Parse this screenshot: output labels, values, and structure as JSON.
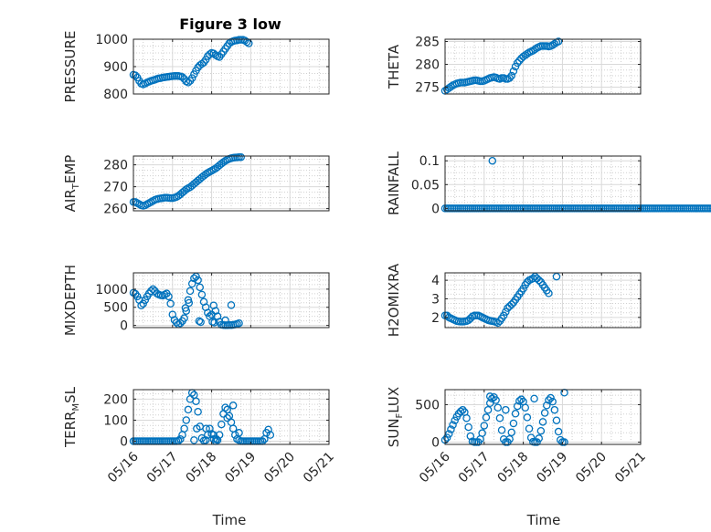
{
  "figure": {
    "title": "Figure 3 low",
    "marker_color": "#0072BD"
  },
  "x_ticks": [
    "05/16",
    "05/17",
    "05/18",
    "05/19",
    "05/20",
    "05/21"
  ],
  "chart_data": [
    {
      "type": "scatter",
      "title": "Figure 3 low",
      "ylabel_main": "PRESSURE",
      "ylabel_sub": "",
      "ylabel_tail": "",
      "xlabel": "",
      "ylim": [
        800,
        1000
      ],
      "yticks": [
        "800",
        "900",
        "1000"
      ],
      "ytick_values": [
        800,
        900,
        1000
      ],
      "x_range_days": [
        0,
        5
      ],
      "grid": true,
      "x_step": 0.05,
      "y": [
        870,
        868,
        860,
        848,
        838,
        835,
        838,
        842,
        845,
        848,
        850,
        852,
        855,
        857,
        858,
        860,
        861,
        862,
        863,
        864,
        865,
        866,
        866,
        866,
        864,
        862,
        855,
        846,
        842,
        848,
        858,
        872,
        885,
        897,
        905,
        910,
        915,
        925,
        938,
        945,
        950,
        948,
        942,
        938,
        935,
        945,
        955,
        965,
        975,
        985,
        990,
        993,
        995,
        996,
        998,
        998,
        998,
        995,
        990,
        985
      ]
    },
    {
      "type": "scatter",
      "title": "",
      "ylabel_main": "THETA",
      "ylabel_sub": "",
      "ylabel_tail": "",
      "xlabel": "",
      "ylim": [
        273.5,
        285.5
      ],
      "yticks": [
        "275",
        "280",
        "285"
      ],
      "ytick_values": [
        275,
        280,
        285
      ],
      "x_range_days": [
        0,
        5
      ],
      "grid": true,
      "x_step": 0.05,
      "y": [
        274.2,
        274.5,
        274.8,
        275.1,
        275.4,
        275.6,
        275.8,
        275.9,
        276,
        276,
        276,
        276.1,
        276.2,
        276.3,
        276.4,
        276.5,
        276.5,
        276.4,
        276.3,
        276.3,
        276.4,
        276.6,
        276.8,
        277,
        277.1,
        277.2,
        277.1,
        276.9,
        276.8,
        277,
        277,
        276.8,
        276.8,
        277,
        277.5,
        278.5,
        279.5,
        280.3,
        280.8,
        281.3,
        281.7,
        282,
        282.3,
        282.6,
        282.8,
        283,
        283.3,
        283.6,
        283.8,
        284,
        284,
        284,
        284,
        283.9,
        284,
        284.2,
        284.5,
        284.8,
        285
      ]
    },
    {
      "type": "scatter",
      "title": "",
      "ylabel_main": "AIR",
      "ylabel_sub": "T",
      "ylabel_tail": "EMP",
      "xlabel": "",
      "ylim": [
        259,
        284
      ],
      "yticks": [
        "260",
        "270",
        "280"
      ],
      "ytick_values": [
        260,
        270,
        280
      ],
      "x_range_days": [
        0,
        5
      ],
      "grid": true,
      "x_step": 0.05,
      "y": [
        263,
        263,
        262.5,
        262,
        261.5,
        261.3,
        261.5,
        262,
        262.5,
        263,
        263.5,
        264,
        264.3,
        264.5,
        264.7,
        264.8,
        265,
        265,
        264.9,
        264.8,
        264.8,
        265,
        265.3,
        265.8,
        266.5,
        267.3,
        268,
        268.8,
        269.3,
        269.8,
        270.5,
        271.3,
        272,
        272.8,
        273.5,
        274.3,
        275,
        275.7,
        276.3,
        276.8,
        277.3,
        277.8,
        278.3,
        279,
        279.8,
        280.5,
        281.2,
        281.8,
        282.3,
        282.7,
        283,
        283.2,
        283.3,
        283.4,
        283.5,
        283.5
      ]
    },
    {
      "type": "scatter",
      "title": "",
      "ylabel_main": "RAINFALL",
      "ylabel_sub": "",
      "ylabel_tail": "",
      "xlabel": "",
      "ylim": [
        -0.005,
        0.11
      ],
      "yticks": [
        "0",
        "0.05",
        "0.1"
      ],
      "ytick_values": [
        0,
        0.05,
        0.1
      ],
      "x_range_days": [
        0,
        5
      ],
      "grid": true,
      "x_step": 0.05,
      "y": [
        0,
        0,
        0,
        0,
        0,
        0,
        0,
        0,
        0,
        0,
        0,
        0,
        0,
        0,
        0,
        0,
        0,
        0,
        0,
        0,
        0,
        0,
        0,
        0,
        0,
        0,
        0,
        0,
        0,
        0,
        0,
        0,
        0,
        0,
        0,
        0,
        0,
        0,
        0,
        0,
        0,
        0,
        0,
        0,
        0,
        0,
        0,
        0,
        0,
        0,
        0,
        0,
        0,
        0,
        0,
        0,
        0,
        0,
        0,
        0,
        0,
        0,
        0,
        0,
        0,
        0,
        0,
        0,
        0,
        0,
        0,
        0,
        0,
        0,
        0,
        0,
        0,
        0,
        0,
        0,
        0,
        0,
        0,
        0,
        0,
        0,
        0,
        0,
        0,
        0,
        0,
        0,
        0,
        0,
        0,
        0,
        0,
        0,
        0,
        0,
        0,
        0,
        0,
        0,
        0,
        0,
        0,
        0,
        0,
        0,
        0,
        0,
        0,
        0,
        0,
        0,
        0,
        0,
        0,
        0,
        0,
        0,
        0,
        0,
        0,
        0,
        0,
        0,
        0,
        0,
        0,
        0,
        0,
        0,
        0,
        0,
        0,
        0,
        0,
        0,
        0,
        0,
        0,
        0,
        0,
        0,
        0,
        0,
        0,
        0,
        0,
        0,
        0,
        0,
        0,
        0,
        0,
        0,
        0,
        0,
        0,
        0,
        0,
        0,
        0,
        0,
        0,
        0,
        0,
        0,
        0,
        0,
        0,
        0,
        0,
        0,
        0,
        0,
        0,
        0,
        0,
        0,
        0,
        0,
        0,
        0,
        0,
        0,
        0,
        0,
        0,
        0,
        0,
        0,
        0,
        0,
        0,
        0,
        0,
        0,
        0,
        0,
        0,
        0,
        0
      ],
      "extra_points": [
        {
          "x": 1.21,
          "y": 0.1
        }
      ]
    },
    {
      "type": "scatter",
      "title": "",
      "ylabel_main": "MIXDEPTH",
      "ylabel_sub": "",
      "ylabel_tail": "",
      "xlabel": "",
      "ylim": [
        -60,
        1450
      ],
      "yticks": [
        "0",
        "500",
        "1000"
      ],
      "ytick_values": [
        0,
        500,
        1000
      ],
      "x_range_days": [
        0,
        5
      ],
      "grid": true,
      "x_step": 0.05,
      "y": [
        900,
        870,
        800,
        700,
        550,
        600,
        700,
        800,
        880,
        950,
        1000,
        950,
        880,
        850,
        830,
        820,
        850,
        880,
        800,
        600,
        300,
        150,
        80,
        30,
        60,
        120,
        200,
        400,
        700,
        950,
        1150,
        1300,
        1350,
        1250,
        1050,
        850,
        650,
        500,
        350,
        250,
        300,
        550,
        400,
        250,
        100,
        20,
        10,
        5,
        5,
        8,
        10,
        15,
        25,
        40,
        60
      ],
      "extra_points": [
        {
          "x": 1.33,
          "y": 480
        },
        {
          "x": 1.42,
          "y": 620
        },
        {
          "x": 1.68,
          "y": 120
        },
        {
          "x": 1.72,
          "y": 90
        },
        {
          "x": 2.02,
          "y": 100
        },
        {
          "x": 2.07,
          "y": 80
        },
        {
          "x": 2.35,
          "y": 140
        },
        {
          "x": 2.5,
          "y": 560
        }
      ]
    },
    {
      "type": "scatter",
      "title": "",
      "ylabel_main": "H2OMIXRA",
      "ylabel_sub": "",
      "ylabel_tail": "",
      "xlabel": "",
      "ylim": [
        1.45,
        4.4
      ],
      "yticks": [
        "2",
        "3",
        "4"
      ],
      "ytick_values": [
        2,
        3,
        4
      ],
      "x_range_days": [
        0,
        5
      ],
      "grid": true,
      "x_step": 0.05,
      "y": [
        2.1,
        2.1,
        2,
        1.95,
        1.9,
        1.85,
        1.8,
        1.78,
        1.77,
        1.77,
        1.78,
        1.8,
        1.85,
        1.95,
        2.05,
        2.1,
        2.1,
        2.1,
        2.05,
        2,
        1.95,
        1.9,
        1.85,
        1.82,
        1.8,
        1.78,
        1.75,
        1.7,
        1.8,
        1.95,
        2.1,
        2.3,
        2.5,
        2.6,
        2.7,
        2.8,
        2.95,
        3.1,
        3.25,
        3.4,
        3.55,
        3.75,
        3.9,
        4,
        4.05,
        4.1,
        4.2,
        4.1,
        4,
        3.9,
        3.75,
        3.6,
        3.45,
        3.3
      ],
      "extra_points": [
        {
          "x": 2.85,
          "y": 4.2
        }
      ]
    },
    {
      "type": "scatter",
      "title": "",
      "ylabel_main": "TERR",
      "ylabel_sub": "M",
      "ylabel_tail": "SL",
      "xlabel": "Time",
      "ylim": [
        -15,
        245
      ],
      "yticks": [
        "0",
        "100",
        "200"
      ],
      "ytick_values": [
        0,
        100,
        200
      ],
      "x_range_days": [
        0,
        5
      ],
      "grid": true,
      "x_step": 0.05,
      "y": [
        0,
        0,
        0,
        0,
        0,
        0,
        0,
        0,
        0,
        0,
        0,
        0,
        0,
        0,
        0,
        0,
        0,
        0,
        0,
        0,
        0,
        0,
        0,
        2,
        10,
        30,
        60,
        100,
        150,
        200,
        230,
        220,
        190,
        140,
        70,
        15,
        3,
        5,
        30,
        60,
        35,
        10,
        0,
        5,
        30,
        80,
        130,
        160,
        150,
        120,
        90,
        60,
        30,
        10,
        5,
        0,
        0,
        0,
        0,
        0,
        0,
        0,
        0,
        0,
        0,
        0,
        0,
        10,
        40,
        55,
        30
      ],
      "extra_points": [
        {
          "x": 1.55,
          "y": 5
        },
        {
          "x": 1.62,
          "y": 60
        },
        {
          "x": 1.86,
          "y": 60
        },
        {
          "x": 2.05,
          "y": 30
        },
        {
          "x": 2.12,
          "y": 10
        },
        {
          "x": 2.4,
          "y": 110
        },
        {
          "x": 2.55,
          "y": 170
        },
        {
          "x": 2.7,
          "y": 40
        }
      ]
    },
    {
      "type": "scatter",
      "title": "",
      "ylabel_main": "SUN",
      "ylabel_sub": "F",
      "ylabel_tail": "LUX",
      "xlabel": "Time",
      "ylim": [
        -30,
        700
      ],
      "yticks": [
        "0",
        "500"
      ],
      "ytick_values": [
        0,
        500
      ],
      "x_range_days": [
        0,
        5
      ],
      "grid": true,
      "x_step": 0.05,
      "y": [
        30,
        60,
        110,
        170,
        230,
        290,
        340,
        380,
        410,
        430,
        400,
        320,
        200,
        80,
        10,
        0,
        0,
        0,
        40,
        120,
        220,
        330,
        430,
        520,
        580,
        600,
        560,
        460,
        320,
        160,
        40,
        0,
        0,
        40,
        130,
        250,
        380,
        480,
        550,
        570,
        540,
        460,
        330,
        180,
        60,
        5,
        0,
        0,
        50,
        150,
        270,
        390,
        490,
        560,
        590,
        540,
        430,
        290,
        140,
        30,
        0,
        0
      ],
      "extra_points": [
        {
          "x": 1.15,
          "y": 610
        },
        {
          "x": 1.55,
          "y": 430
        },
        {
          "x": 2.28,
          "y": 580
        },
        {
          "x": 3.05,
          "y": 660
        }
      ]
    }
  ]
}
